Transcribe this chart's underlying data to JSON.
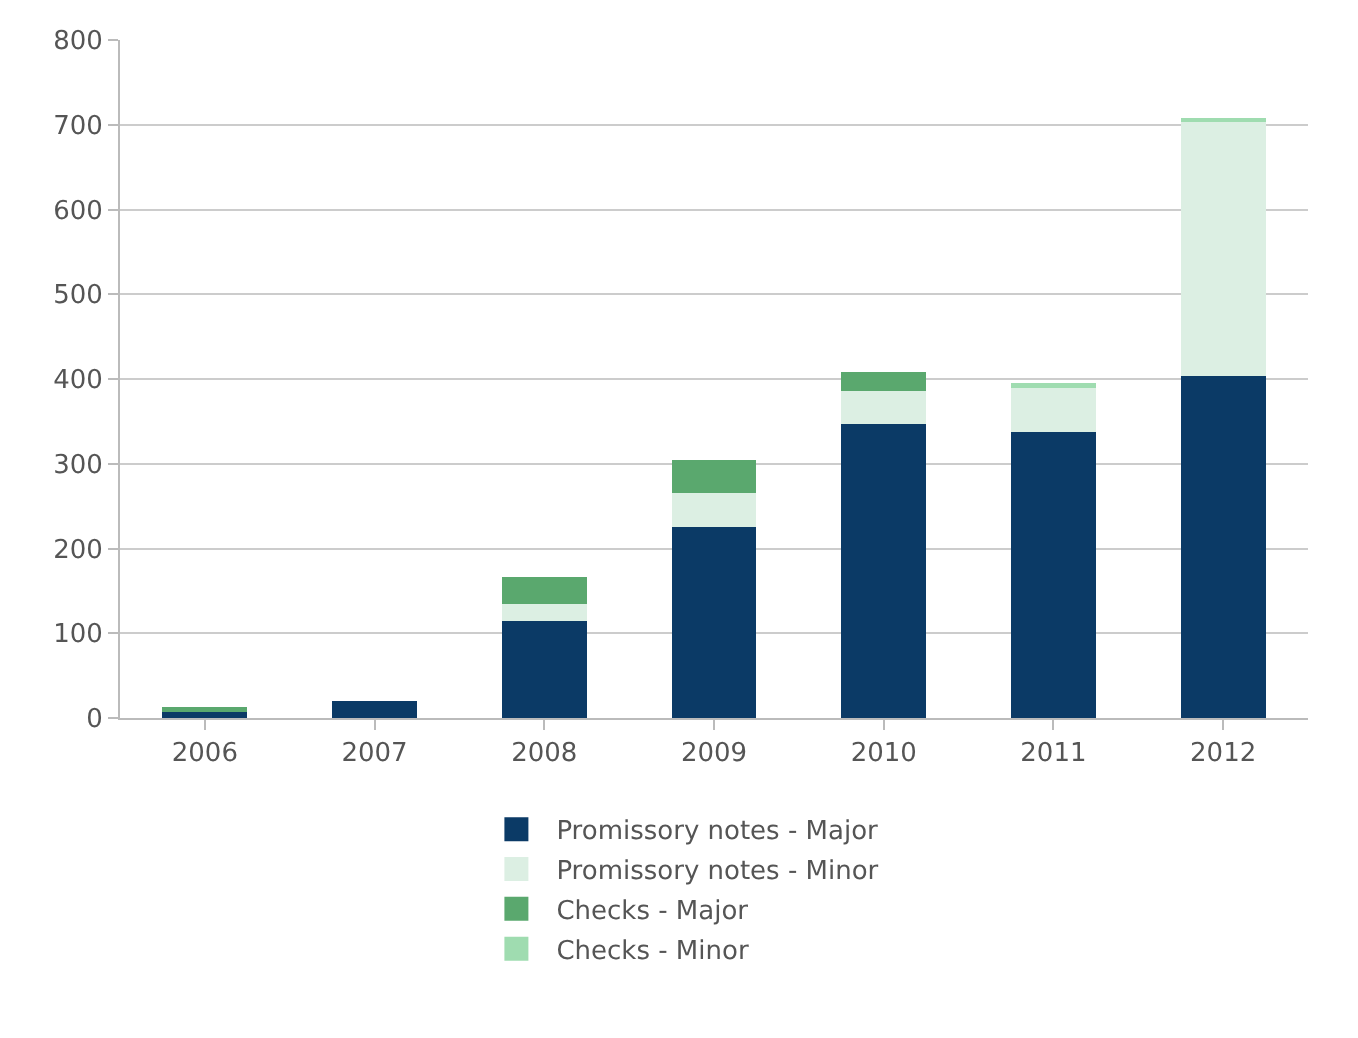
{
  "chart_data": {
    "type": "bar",
    "stacked": true,
    "categories": [
      "2006",
      "2007",
      "2008",
      "2009",
      "2010",
      "2011",
      "2012"
    ],
    "series": [
      {
        "name": "Promissory notes - Major",
        "color": "#0b3a66",
        "values": [
          9,
          20,
          115,
          225,
          347,
          337,
          403
        ]
      },
      {
        "name": "Promissory notes - Minor",
        "color": "#dcefe3",
        "values": [
          0,
          0,
          19,
          41,
          39,
          54,
          301
        ]
      },
      {
        "name": "Checks - Major",
        "color": "#5aa86e",
        "values": [
          4,
          0,
          32,
          39,
          22,
          0,
          0
        ]
      },
      {
        "name": "Checks - Minor",
        "color": "#9fdcb0",
        "values": [
          0,
          0,
          0,
          0,
          0,
          4,
          4
        ]
      }
    ],
    "ylim": [
      0,
      800
    ],
    "yticks": [
      0,
      100,
      200,
      300,
      400,
      500,
      600,
      700,
      800
    ],
    "grid": "y",
    "legend": "bottom"
  }
}
